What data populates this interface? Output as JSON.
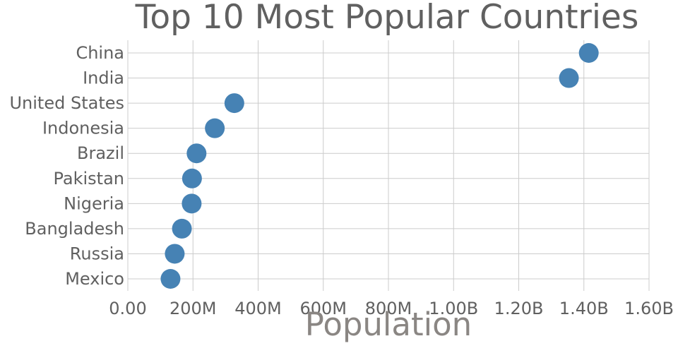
{
  "chart_data": {
    "type": "scatter",
    "title": "Top 10 Most Popular Countries",
    "xlabel": "Population",
    "ylabel": "",
    "xlim": [
      0,
      1600000000
    ],
    "xticks": [
      0,
      200000000,
      400000000,
      600000000,
      800000000,
      1000000000,
      1200000000,
      1400000000,
      1600000000
    ],
    "xtick_labels": [
      "0.00",
      "200M",
      "400M",
      "600M",
      "800M",
      "1.00B",
      "1.20B",
      "1.40B",
      "1.60B"
    ],
    "grid": true,
    "legend": "none",
    "marker_color": "#4682b4",
    "categories": [
      "China",
      "India",
      "United States",
      "Indonesia",
      "Brazil",
      "Pakistan",
      "Nigeria",
      "Bangladesh",
      "Russia",
      "Mexico"
    ],
    "values": [
      1415000000,
      1354000000,
      327000000,
      267000000,
      211000000,
      197000000,
      196000000,
      166000000,
      144000000,
      131000000
    ]
  }
}
